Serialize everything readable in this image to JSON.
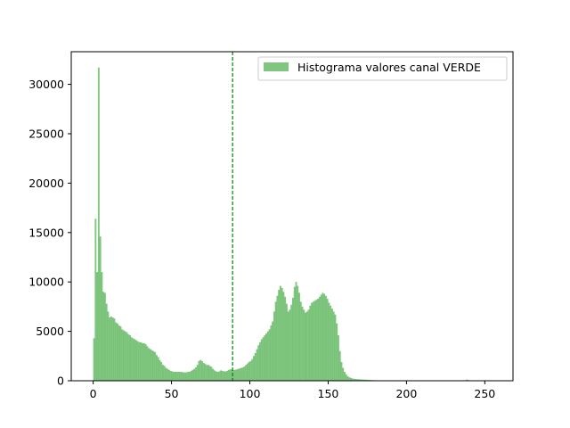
{
  "chart_data": {
    "type": "bar",
    "title": "",
    "xlabel": "",
    "ylabel": "",
    "xlim": [
      -14,
      268
    ],
    "ylim": [
      0,
      33300
    ],
    "grid": false,
    "legend_position": "top-right",
    "x_ticks": [
      0,
      50,
      100,
      150,
      200,
      250
    ],
    "y_ticks": [
      0,
      5000,
      10000,
      15000,
      20000,
      25000,
      30000
    ],
    "bar_color": "#2ca02c",
    "bar_opacity": 0.6,
    "mean_line": {
      "x": 89,
      "color": "#008000",
      "style": "dashed"
    },
    "series": [
      {
        "name": "Histograma valores canal VERDE",
        "bin_start": 0,
        "bin_width": 1,
        "values": [
          4300,
          16400,
          11000,
          31700,
          14600,
          11000,
          9000,
          8900,
          7800,
          7000,
          6400,
          6500,
          6400,
          6300,
          5900,
          5800,
          5600,
          5500,
          5200,
          5100,
          5000,
          4900,
          4700,
          4600,
          4400,
          4300,
          4200,
          4100,
          4000,
          3900,
          3900,
          3800,
          3800,
          3700,
          3500,
          3300,
          3200,
          3100,
          3000,
          2900,
          2600,
          2400,
          2100,
          1900,
          1600,
          1500,
          1300,
          1200,
          1100,
          1000,
          950,
          900,
          900,
          900,
          900,
          900,
          900,
          850,
          850,
          850,
          900,
          900,
          1000,
          1100,
          1200,
          1350,
          1600,
          2000,
          2100,
          2000,
          1800,
          1700,
          1600,
          1600,
          1500,
          1400,
          1200,
          1050,
          950,
          900,
          950,
          1050,
          1000,
          950,
          950,
          1000,
          1100,
          1150,
          1150,
          1100,
          1100,
          1150,
          1200,
          1250,
          1300,
          1350,
          1450,
          1600,
          1750,
          1900,
          2000,
          2200,
          2500,
          2800,
          3200,
          3600,
          3900,
          4200,
          4400,
          4600,
          4800,
          5000,
          5200,
          5600,
          6000,
          7000,
          8000,
          8600,
          9200,
          9600,
          9400,
          9000,
          8500,
          7800,
          7000,
          7200,
          7700,
          8400,
          9500,
          10000,
          9600,
          8900,
          8000,
          7500,
          7200,
          6900,
          7000,
          7200,
          7600,
          7900,
          8000,
          8100,
          8200,
          8300,
          8500,
          8700,
          8900,
          8800,
          8600,
          8300,
          7900,
          7600,
          7300,
          7000,
          6700,
          5800,
          4600,
          3000,
          1900,
          1300,
          900,
          650,
          450,
          350,
          280,
          230,
          200,
          180,
          160,
          150,
          140,
          130,
          120,
          110,
          100,
          90,
          80,
          70,
          60,
          50,
          40,
          30,
          20,
          10,
          5,
          0,
          0,
          0,
          0,
          0,
          0,
          0,
          0,
          0,
          0,
          0,
          0,
          0,
          0,
          0,
          0,
          0,
          0,
          0,
          0,
          0,
          0,
          0,
          0,
          0,
          0,
          0,
          0,
          0,
          0,
          0,
          0,
          0,
          0,
          0,
          0,
          0,
          0,
          0,
          0,
          0,
          0,
          0,
          0,
          0,
          0,
          0,
          0,
          0,
          0,
          0,
          0,
          0,
          120,
          60,
          0,
          0,
          0,
          0,
          0,
          0,
          0,
          0,
          0,
          0,
          0,
          0,
          0,
          0,
          0,
          0
        ]
      }
    ]
  }
}
